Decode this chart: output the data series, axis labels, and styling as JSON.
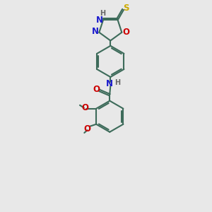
{
  "bg_color": "#e8e8e8",
  "bond_color": "#3d6b5a",
  "bond_width": 1.5,
  "atom_colors": {
    "N": "#1a1acc",
    "O": "#cc0000",
    "S": "#ccaa00",
    "H": "#666666"
  },
  "font_size": 8.5,
  "fig_width": 3.0,
  "fig_height": 3.0,
  "dpi": 100,
  "xlim": [
    0,
    10
  ],
  "ylim": [
    0,
    14
  ]
}
